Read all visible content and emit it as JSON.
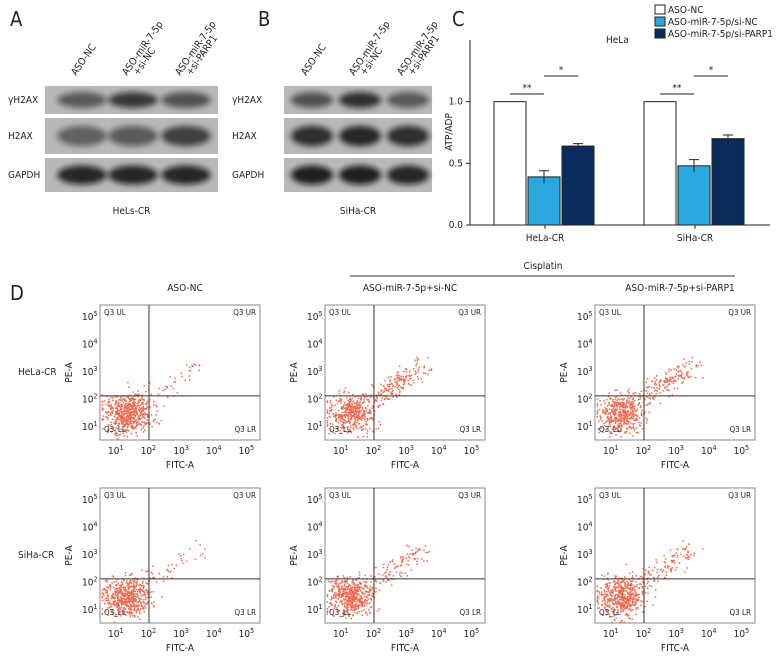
{
  "panel_labels": [
    "A",
    "B",
    "C",
    "D"
  ],
  "blots": [
    {
      "columns": [
        [
          "ASO-NC"
        ],
        [
          "ASO-miR-7-5p",
          "+si-NC"
        ],
        [
          "ASO-miR-7-5p",
          "+si-PARP1"
        ]
      ],
      "rows": [
        "γH2AX",
        "H2AX",
        "GAPDH"
      ],
      "caption": "HeLs-CR"
    },
    {
      "columns": [
        [
          "ASO-NC"
        ],
        [
          "ASO-miR-7-5p",
          "+si-NC"
        ],
        [
          "ASO-miR-7-5p",
          "+si-PARP1"
        ]
      ],
      "rows": [
        "γH2AX",
        "H2AX",
        "GAPDH"
      ],
      "caption": "SiHa-CR"
    }
  ],
  "chart_data": {
    "type": "bar",
    "subtitle": "HeLa",
    "ylabel": "ATP/ADP",
    "categories": [
      "HeLa-CR",
      "SiHa-CR"
    ],
    "series": [
      {
        "name": "ASO-NC",
        "color": "#ffffff",
        "values": [
          1.0,
          1.0
        ]
      },
      {
        "name": "ASO-miR-7-5p/si-NC",
        "color": "#29a8e0",
        "values": [
          0.39,
          0.48
        ],
        "errors": [
          0.05,
          0.05
        ]
      },
      {
        "name": "ASO-miR-7-5p/si-PARP1",
        "color": "#0b2d5c",
        "values": [
          0.64,
          0.7
        ],
        "errors": [
          0.02,
          0.03
        ]
      }
    ],
    "ylim": [
      0,
      1.5
    ],
    "yticks": [
      {
        "value": 0,
        "label": "0.0"
      },
      {
        "value": 0.5,
        "label": "0.5"
      },
      {
        "value": 1,
        "label": "1.0"
      }
    ],
    "annotations": [
      "**",
      "*",
      "**",
      "*"
    ],
    "legend": "top-right"
  },
  "flow": {
    "header": "Cisplatin",
    "columns": [
      "ASO-NC",
      "ASO-miR-7-5p+si-NC",
      "ASO-miR-7-5p+si-PARP1"
    ],
    "rows": [
      "HeLa-CR",
      "SiHa-CR"
    ],
    "x_label": "FITC-A",
    "y_label": "PE-A",
    "quadrants": [
      "Q3 UL",
      "Q3 UR",
      "Q3_LL",
      "Q3 LR"
    ],
    "tick_base": "10",
    "tick_exponents": [
      "1",
      "2",
      "3",
      "4",
      "5"
    ]
  }
}
